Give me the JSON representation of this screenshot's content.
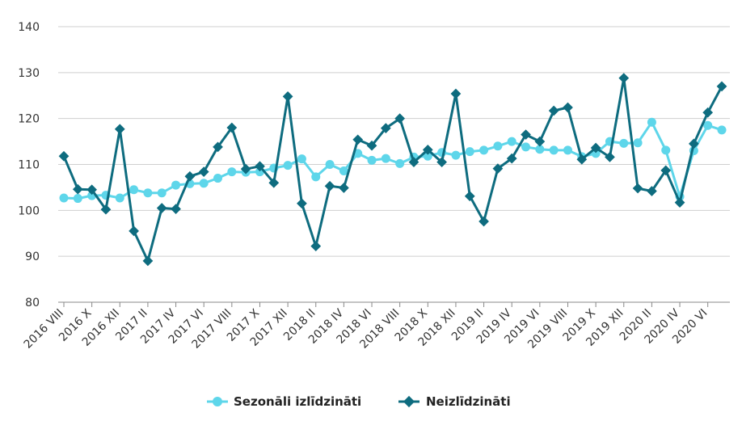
{
  "chart_data": {
    "type": "line",
    "title": "",
    "xlabel": "",
    "ylabel": "",
    "ylim": [
      80,
      140
    ],
    "yticks": [
      80,
      90,
      100,
      110,
      120,
      130,
      140
    ],
    "grid": true,
    "legend_position": "bottom",
    "categories": [
      "2016 VIII",
      "2016 IX",
      "2016 X",
      "2016 XI",
      "2016 XII",
      "2017 I",
      "2017 II",
      "2017 III",
      "2017 IV",
      "2017 V",
      "2017 VI",
      "2017 VII",
      "2017 VIII",
      "2017 IX",
      "2017 X",
      "2017 XI",
      "2017 XII",
      "2018 I",
      "2018 II",
      "2018 III",
      "2018 IV",
      "2018 V",
      "2018 VI",
      "2018 VII",
      "2018 VIII",
      "2018 IX",
      "2018 X",
      "2018 XI",
      "2018 XII",
      "2019 I",
      "2019 II",
      "2019 III",
      "2019 IV",
      "2019 V",
      "2019 VI",
      "2019 VII",
      "2019 VIII",
      "2019 IX",
      "2019 X",
      "2019 XI",
      "2019 XII",
      "2020 I",
      "2020 II",
      "2020 III",
      "2020 IV",
      "2020 V",
      "2020 VI",
      "2020 VII"
    ],
    "tick_labels": [
      "2016 VIII",
      "2016 X",
      "2016 XII",
      "2017 II",
      "2017 IV",
      "2017 VI",
      "2017 VIII",
      "2017 X",
      "2017 XII",
      "2018 II",
      "2018 IV",
      "2018 VI",
      "2018 VIII",
      "2018 X",
      "2018 XII",
      "2019 II",
      "2019 IV",
      "2019 VI",
      "2019 VIII",
      "2019 X",
      "2019 XII",
      "2020 II",
      "2020 IV",
      "2020 VI"
    ],
    "series": [
      {
        "name": "Sezonāli izlīdzināti",
        "color": "#5ed6ea",
        "marker": "circle",
        "values": [
          102.7,
          102.6,
          103.2,
          103.3,
          102.7,
          104.5,
          103.8,
          103.8,
          105.5,
          105.8,
          105.9,
          107.0,
          108.4,
          108.3,
          108.4,
          109.2,
          109.8,
          111.2,
          107.3,
          110.0,
          108.6,
          112.4,
          110.9,
          111.3,
          110.2,
          111.6,
          111.8,
          112.6,
          112.0,
          112.8,
          113.1,
          114.0,
          115.0,
          113.8,
          113.3,
          113.1,
          113.1,
          111.7,
          112.4,
          115.0,
          114.6,
          114.7,
          119.2,
          113.1,
          103.0,
          113.0,
          118.5,
          117.5
        ]
      },
      {
        "name": "Neizlīdzināti",
        "color": "#0e6c7f",
        "marker": "diamond",
        "values": [
          111.8,
          104.6,
          104.5,
          100.2,
          117.7,
          95.5,
          89.0,
          100.5,
          100.3,
          107.4,
          108.4,
          113.8,
          118.0,
          109.0,
          109.6,
          106.0,
          124.8,
          101.5,
          92.2,
          105.3,
          104.9,
          115.4,
          114.1,
          117.9,
          120.0,
          110.5,
          113.2,
          110.5,
          125.4,
          103.1,
          97.6,
          109.1,
          111.3,
          116.5,
          115.0,
          121.7,
          122.4,
          111.1,
          113.6,
          111.6,
          128.8,
          104.8,
          104.2,
          108.7,
          101.7,
          114.5,
          121.3,
          127.0
        ]
      }
    ]
  }
}
